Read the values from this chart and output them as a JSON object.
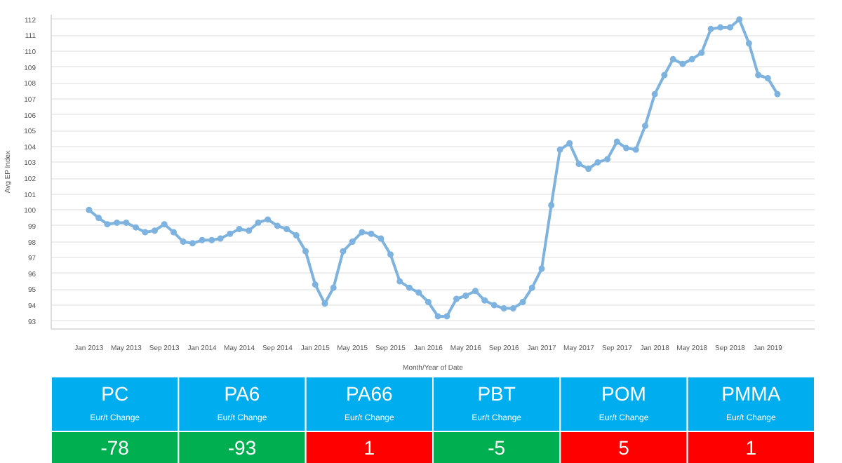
{
  "chart_data": [
    {
      "type": "line",
      "xlabel": "Month/Year of Date",
      "ylabel": "Avg EP Index",
      "x": [
        "2013-01",
        "2013-02",
        "2013-03",
        "2013-04",
        "2013-05",
        "2013-06",
        "2013-07",
        "2013-08",
        "2013-09",
        "2013-10",
        "2013-11",
        "2013-12",
        "2014-01",
        "2014-02",
        "2014-03",
        "2014-04",
        "2014-05",
        "2014-06",
        "2014-07",
        "2014-08",
        "2014-09",
        "2014-10",
        "2014-11",
        "2014-12",
        "2015-01",
        "2015-02",
        "2015-03",
        "2015-04",
        "2015-05",
        "2015-06",
        "2015-07",
        "2015-08",
        "2015-09",
        "2015-10",
        "2015-11",
        "2015-12",
        "2016-01",
        "2016-02",
        "2016-03",
        "2016-04",
        "2016-05",
        "2016-06",
        "2016-07",
        "2016-08",
        "2016-09",
        "2016-10",
        "2016-11",
        "2016-12",
        "2017-01",
        "2017-02",
        "2017-03",
        "2017-04",
        "2017-05",
        "2017-06",
        "2017-07",
        "2017-08",
        "2017-09",
        "2017-10",
        "2017-11",
        "2017-12",
        "2018-01",
        "2018-02",
        "2018-03",
        "2018-04",
        "2018-05",
        "2018-06",
        "2018-07",
        "2018-08",
        "2018-09",
        "2018-10",
        "2018-11",
        "2018-12",
        "2019-01",
        "2019-02"
      ],
      "series": [
        {
          "color": "#7eb3e0",
          "values": [
            100.0,
            99.5,
            99.1,
            99.2,
            99.2,
            98.9,
            98.6,
            98.7,
            99.1,
            98.6,
            98.0,
            97.9,
            98.1,
            98.1,
            98.2,
            98.5,
            98.8,
            98.7,
            99.2,
            99.4,
            99.0,
            98.8,
            98.4,
            97.4,
            95.3,
            94.1,
            95.1,
            97.4,
            98.0,
            98.6,
            98.5,
            98.2,
            97.2,
            95.5,
            95.1,
            94.8,
            94.2,
            93.3,
            93.3,
            94.4,
            94.6,
            94.9,
            94.3,
            94.0,
            93.8,
            93.8,
            94.2,
            95.1,
            96.3,
            100.3,
            103.8,
            104.2,
            102.9,
            102.6,
            103.0,
            103.2,
            104.3,
            103.9,
            103.8,
            105.3,
            107.3,
            108.5,
            109.5,
            109.2,
            109.5,
            109.9,
            111.4,
            111.5,
            111.5,
            112.0,
            110.5,
            108.5,
            108.3,
            107.3
          ]
        }
      ],
      "xlim": [
        "2012-09",
        "2019-06"
      ],
      "xticks": [
        {
          "value": "2013-01",
          "label": "Jan 2013"
        },
        {
          "value": "2013-05",
          "label": "May 2013"
        },
        {
          "value": "2013-09",
          "label": "Sep 2013"
        },
        {
          "value": "2014-01",
          "label": "Jan 2014"
        },
        {
          "value": "2014-05",
          "label": "May 2014"
        },
        {
          "value": "2014-09",
          "label": "Sep 2014"
        },
        {
          "value": "2015-01",
          "label": "Jan 2015"
        },
        {
          "value": "2015-05",
          "label": "May 2015"
        },
        {
          "value": "2015-09",
          "label": "Sep 2015"
        },
        {
          "value": "2016-01",
          "label": "Jan 2016"
        },
        {
          "value": "2016-05",
          "label": "May 2016"
        },
        {
          "value": "2016-09",
          "label": "Sep 2016"
        },
        {
          "value": "2017-01",
          "label": "Jan 2017"
        },
        {
          "value": "2017-05",
          "label": "May 2017"
        },
        {
          "value": "2017-09",
          "label": "Sep 2017"
        },
        {
          "value": "2018-01",
          "label": "Jan 2018"
        },
        {
          "value": "2018-05",
          "label": "May 2018"
        },
        {
          "value": "2018-09",
          "label": "Sep 2018"
        },
        {
          "value": "2019-01",
          "label": "Jan 2019"
        }
      ],
      "ylim": [
        92.5,
        112.3
      ],
      "yticks": [
        93,
        94,
        95,
        96,
        97,
        98,
        99,
        100,
        101,
        102,
        103,
        104,
        105,
        106,
        107,
        108,
        109,
        110,
        111,
        112
      ],
      "grid": "y",
      "marker": "circle",
      "line_style": "solid"
    },
    {
      "type": "other",
      "color": "#00aeef",
      "categories": [
        "PC",
        "PA6",
        "PA66",
        "PBT",
        "POM",
        "PMMA"
      ],
      "annotations": [
        "Eur/t Change",
        "Eur/t Change",
        "Eur/t Change",
        "Eur/t Change",
        "Eur/t Change",
        "Eur/t Change"
      ]
    },
    {
      "type": "other",
      "data_labels": true,
      "categories": [
        null,
        null,
        null,
        null,
        null,
        null
      ],
      "values": [
        -78,
        -93,
        1,
        -5,
        5,
        1
      ],
      "colors": [
        "#00b050",
        "#00b050",
        "#ff0000",
        "#00b050",
        "#ff0000",
        "#ff0000"
      ]
    }
  ]
}
